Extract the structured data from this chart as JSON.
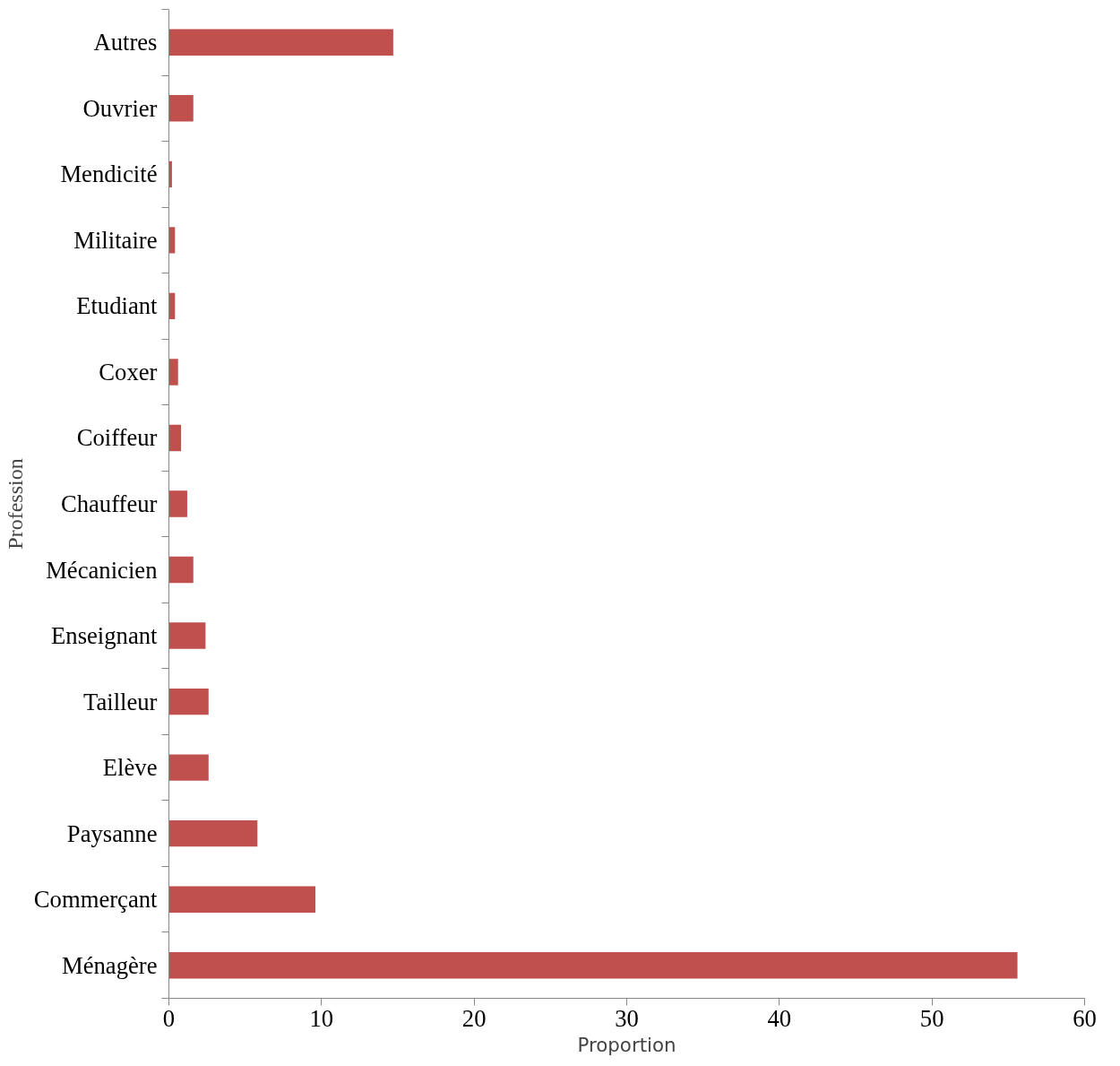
{
  "chart_data": {
    "type": "bar",
    "orientation": "horizontal",
    "xlabel": "Proportion",
    "ylabel": "Profession",
    "categories": [
      "Autres",
      "Ouvrier",
      "Mendicité",
      "Militaire",
      "Etudiant",
      "Coxer",
      "Coiffeur",
      "Chauffeur",
      "Mécanicien",
      "Enseignant",
      "Tailleur",
      "Elève",
      "Paysanne",
      "Commerçant",
      "Ménagère"
    ],
    "values": [
      14.7,
      1.6,
      0.2,
      0.4,
      0.4,
      0.6,
      0.8,
      1.2,
      1.6,
      2.4,
      2.6,
      2.6,
      5.8,
      9.6,
      55.6
    ],
    "color": "#c0504d",
    "xlim": [
      0,
      60
    ],
    "xticks": [
      0,
      10,
      20,
      30,
      40,
      50,
      60
    ],
    "grid": false
  }
}
